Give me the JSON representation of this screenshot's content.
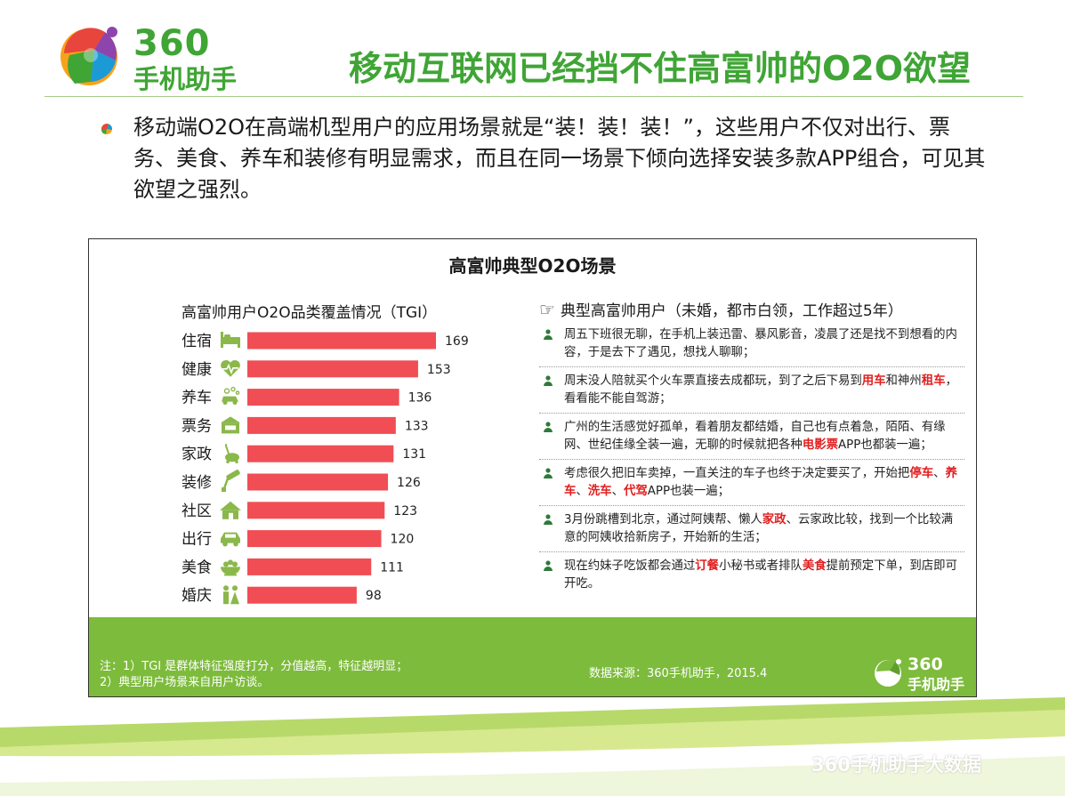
{
  "brand": {
    "logo_number": "360",
    "logo_name": "手机助手",
    "mini_number": "360",
    "mini_name": "手机助手"
  },
  "slide": {
    "title": "移动互联网已经挡不住高富帅的O2O欲望",
    "intro": "移动端O2O在高端机型用户的应用场景就是“装！装！装！”，这些用户不仅对出行、票务、美食、养车和装修有明显需求，而且在同一场景下倾向选择安装多款APP组合，可见其欲望之强烈。"
  },
  "panel": {
    "title": "高富帅典型O2O场景",
    "users_title": "典型高富帅用户（未婚，都市白领，工作超过5年）"
  },
  "chart_data": {
    "type": "bar",
    "orientation": "horizontal",
    "title": "高富帅用户O2O品类覆盖情况（TGI）",
    "categories": [
      "住宿",
      "健康",
      "养车",
      "票务",
      "家政",
      "装修",
      "社区",
      "出行",
      "美食",
      "婚庆"
    ],
    "values": [
      169,
      153,
      136,
      133,
      131,
      126,
      123,
      120,
      111,
      98
    ],
    "category_icons": [
      "bed-icon",
      "heart-pulse-icon",
      "car-wash-icon",
      "ticket-office-icon",
      "vacuum-cleaner-icon",
      "paint-roller-icon",
      "community-house-icon",
      "car-icon",
      "food-bowl-icon",
      "wedding-couple-icon"
    ],
    "xlim": [
      0,
      169
    ],
    "bar_color": "#f04e54",
    "xlabel": "",
    "ylabel": "",
    "grid": false
  },
  "users": [
    {
      "segments": [
        {
          "text": "周五下班很无聊，在手机上装迅雷、暴风影音，凌晨了还是找不到想看的内容，于是去下了遇见，想找人聊聊；"
        }
      ]
    },
    {
      "segments": [
        {
          "text": "周末没人陪就买个火车票直接去成都玩，到了之后下易到"
        },
        {
          "text": "用车",
          "hl": true
        },
        {
          "text": "和神州"
        },
        {
          "text": "租车",
          "hl": true
        },
        {
          "text": "，看看能不能自驾游；"
        }
      ]
    },
    {
      "segments": [
        {
          "text": "广州的生活感觉好孤单，看着朋友都结婚，自己也有点着急，陌陌、有缘网、世纪佳缘全装一遍，无聊的时候就把各种"
        },
        {
          "text": "电影票",
          "hl": true
        },
        {
          "text": "APP也都装一遍；"
        }
      ]
    },
    {
      "segments": [
        {
          "text": "考虑很久把旧车卖掉，一直关注的车子也终于决定要买了，开始把"
        },
        {
          "text": "停车",
          "hl": true
        },
        {
          "text": "、"
        },
        {
          "text": "养车",
          "hl": true
        },
        {
          "text": "、"
        },
        {
          "text": "洗车",
          "hl": true
        },
        {
          "text": "、"
        },
        {
          "text": "代驾",
          "hl": true
        },
        {
          "text": "APP也装一遍；"
        }
      ]
    },
    {
      "segments": [
        {
          "text": "3月份跳槽到北京，通过阿姨帮、懒人"
        },
        {
          "text": "家政",
          "hl": true
        },
        {
          "text": "、云家政比较，找到一个比较满意的阿姨收拾新房子，开始新的生活；"
        }
      ]
    },
    {
      "segments": [
        {
          "text": "现在约妹子吃饭都会通过"
        },
        {
          "text": "订餐",
          "hl": true
        },
        {
          "text": "小秘书或者排队"
        },
        {
          "text": "美食",
          "hl": true
        },
        {
          "text": "提前预定下单，到店即可开吃。"
        }
      ]
    }
  ],
  "footer": {
    "note_1": "注：1）TGI 是群体特征强度打分，分值越高，特征越明显；",
    "note_2": "2）典型用户场景来自用户访谈。",
    "source": "数据来源：360手机助手，2015.4"
  },
  "watermark": "360手机助手大数据",
  "colors": {
    "brand_green": "#3fa535",
    "footer_green": "#7dbb3c",
    "bar": "#f04e54",
    "highlight": "#e02020",
    "icon_green": "#8ab84a",
    "person_icon": "#2f7a3a"
  }
}
